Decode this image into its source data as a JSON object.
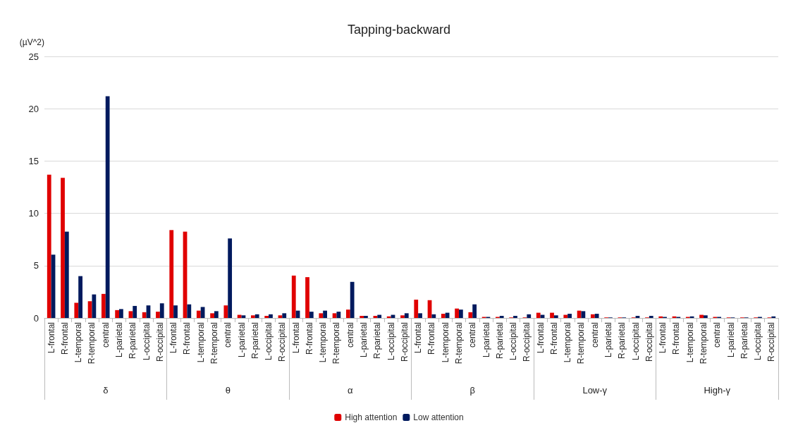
{
  "chart_data": {
    "type": "bar",
    "title": "Tapping-backward",
    "ylabel": "(µV^2)",
    "categories": [
      "L-frontal",
      "R-frontal",
      "L-temporal",
      "R-temporal",
      "central",
      "L-parietal",
      "R-parietal",
      "L-occipital",
      "R-occipital",
      "L-frontal",
      "R-frontal",
      "L-temporal",
      "R-temporal",
      "central",
      "L-parietal",
      "R-parietal",
      "L-occipital",
      "R-occipital",
      "L-frontal",
      "R-frontal",
      "L-temporal",
      "R-temporal",
      "central",
      "L-parietal",
      "R-parietal",
      "L-occipital",
      "R-occipital",
      "L-frontal",
      "R-frontal",
      "L-temporal",
      "R-temporal",
      "central",
      "L-parietal",
      "R-parietal",
      "L-occipital",
      "R-occipital",
      "L-frontal",
      "R-frontal",
      "L-temporal",
      "R-temporal",
      "central",
      "L-parietal",
      "R-parietal",
      "L-occipital",
      "R-occipital",
      "L-frontal",
      "R-frontal",
      "L-temporal",
      "R-temporal",
      "central",
      "L-parietal",
      "R-parietal",
      "L-occipital",
      "R-occipital"
    ],
    "annotations": [
      "δ",
      "θ",
      "α",
      "β",
      "Low-γ",
      "High-γ"
    ],
    "series": [
      {
        "name": "High attention",
        "color": "#e00000",
        "values": [
          13.7,
          13.4,
          1.45,
          1.6,
          2.3,
          0.75,
          0.65,
          0.55,
          0.6,
          8.4,
          8.25,
          0.7,
          0.45,
          1.2,
          0.3,
          0.25,
          0.2,
          0.25,
          4.05,
          3.9,
          0.45,
          0.45,
          0.8,
          0.2,
          0.2,
          0.15,
          0.25,
          1.75,
          1.7,
          0.4,
          0.9,
          0.55,
          0.1,
          0.1,
          0.05,
          0.05,
          0.5,
          0.5,
          0.3,
          0.7,
          0.35,
          0.05,
          0.05,
          0.05,
          0.05,
          0.15,
          0.15,
          0.1,
          0.3,
          0.1,
          0.05,
          0.05,
          0.05,
          0.05
        ]
      },
      {
        "name": "Low attention",
        "color": "#001a5e",
        "values": [
          6.05,
          8.25,
          4.0,
          2.25,
          21.2,
          0.85,
          1.15,
          1.2,
          1.4,
          1.2,
          1.3,
          1.05,
          0.65,
          7.6,
          0.25,
          0.35,
          0.35,
          0.45,
          0.7,
          0.6,
          0.7,
          0.6,
          3.45,
          0.2,
          0.3,
          0.3,
          0.45,
          0.45,
          0.35,
          0.5,
          0.8,
          1.3,
          0.1,
          0.2,
          0.2,
          0.35,
          0.3,
          0.25,
          0.4,
          0.65,
          0.4,
          0.05,
          0.05,
          0.2,
          0.2,
          0.1,
          0.1,
          0.15,
          0.25,
          0.1,
          0.05,
          0.05,
          0.1,
          0.15
        ]
      }
    ],
    "ylim": [
      0,
      25
    ],
    "yticks": [
      0,
      5,
      10,
      15,
      20,
      25
    ],
    "grid": "y",
    "legend": "bottom"
  }
}
